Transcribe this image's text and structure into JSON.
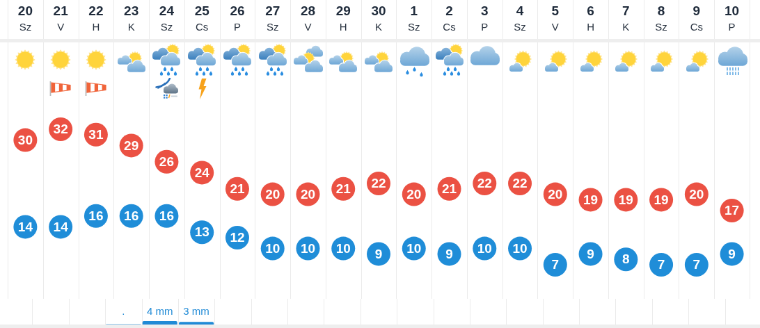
{
  "chart_data": [
    {
      "type": "scatter",
      "categories": [
        "20\nSz",
        "21\nV",
        "22\nH",
        "23\nK",
        "24\nSz",
        "25\nCs",
        "26\nP",
        "27\nSz",
        "28\nV",
        "29\nH",
        "30\nK",
        "1\nSz",
        "2\nCs",
        "3\nP",
        "4\nSz",
        "5\nV",
        "6\nH",
        "7\nK",
        "8\nSz",
        "9\nCs",
        "10\nP"
      ],
      "series": [
        {
          "color": "#eb5143",
          "values": [
            30,
            32,
            31,
            29,
            26,
            24,
            21,
            20,
            20,
            21,
            22,
            20,
            21,
            22,
            22,
            20,
            19,
            19,
            19,
            20,
            17
          ]
        },
        {
          "color": "#1f8dd8",
          "values": [
            14,
            14,
            16,
            16,
            16,
            13,
            12,
            10,
            10,
            10,
            9,
            10,
            9,
            10,
            10,
            7,
            9,
            8,
            7,
            7,
            9
          ]
        }
      ],
      "grid": "x",
      "marker": "circle",
      "data_labels": true,
      "tick_labels": "x"
    },
    {
      "type": "bar",
      "categories": [
        null,
        null,
        null,
        null,
        null,
        null,
        null,
        null,
        null,
        null,
        null,
        null,
        null,
        null,
        null,
        null,
        null,
        null,
        null,
        null,
        null
      ],
      "values": [
        null,
        null,
        null,
        0.5,
        4,
        3,
        null,
        null,
        null,
        null,
        null,
        null,
        null,
        null,
        null,
        null,
        null,
        null,
        null,
        null,
        null
      ],
      "value_labels": [
        null,
        null,
        null,
        ".",
        "4 mm",
        "3 mm",
        null,
        null,
        null,
        null,
        null,
        null,
        null,
        null,
        null,
        null,
        null,
        null,
        null,
        null,
        null
      ],
      "color": "#1f8ad6",
      "grid": "x"
    }
  ]
}
